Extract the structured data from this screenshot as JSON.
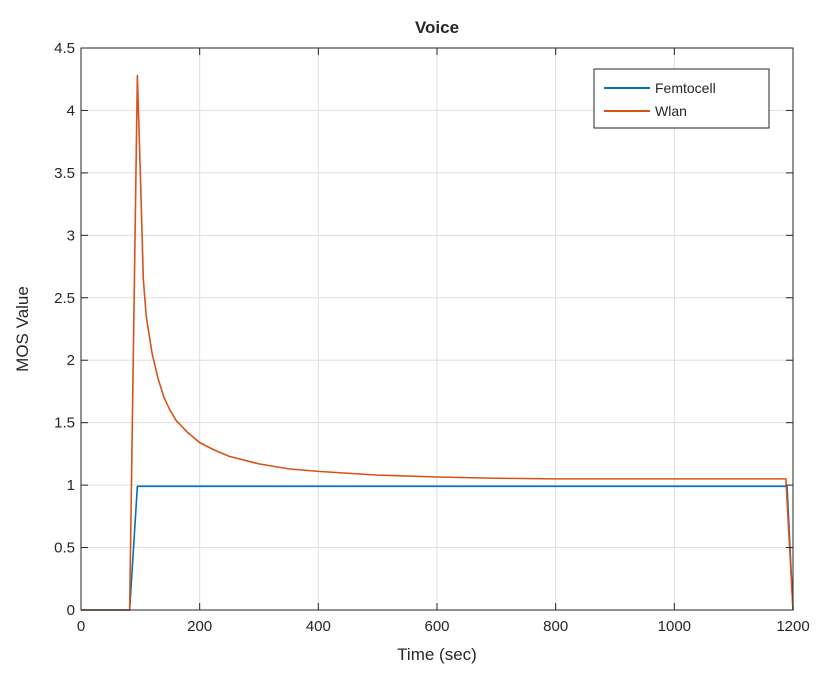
{
  "chart_data": {
    "type": "line",
    "title": "Voice",
    "xlabel": "Time (sec)",
    "ylabel": "MOS Value",
    "xlim": [
      0,
      1200
    ],
    "ylim": [
      0,
      4.5
    ],
    "xticks": [
      0,
      200,
      400,
      600,
      800,
      1000,
      1200
    ],
    "xtick_labels": [
      "0",
      "200",
      "400",
      "600",
      "800",
      "1000",
      "1200"
    ],
    "yticks": [
      0,
      0.5,
      1,
      1.5,
      2,
      2.5,
      3,
      3.5,
      4,
      4.5
    ],
    "ytick_labels": [
      "0",
      "0.5",
      "1",
      "1.5",
      "2",
      "2.5",
      "3",
      "3.5",
      "4",
      "4.5"
    ],
    "grid": true,
    "legend_position": "top-right",
    "series": [
      {
        "name": "Femtocell",
        "color": "#0072BD",
        "x": [
          0,
          82,
          95,
          1190,
          1200
        ],
        "y": [
          0,
          0,
          0.99,
          0.99,
          0
        ]
      },
      {
        "name": "Wlan",
        "color": "#D95319",
        "x": [
          0,
          82,
          95,
          100,
          105,
          110,
          120,
          130,
          140,
          150,
          160,
          180,
          200,
          225,
          250,
          300,
          350,
          400,
          450,
          500,
          600,
          700,
          800,
          900,
          1000,
          1100,
          1188,
          1200
        ],
        "y": [
          0,
          0,
          4.28,
          3.5,
          2.65,
          2.35,
          2.05,
          1.85,
          1.7,
          1.6,
          1.52,
          1.42,
          1.34,
          1.28,
          1.23,
          1.17,
          1.13,
          1.11,
          1.095,
          1.08,
          1.065,
          1.055,
          1.05,
          1.05,
          1.05,
          1.05,
          1.05,
          0
        ]
      }
    ]
  }
}
